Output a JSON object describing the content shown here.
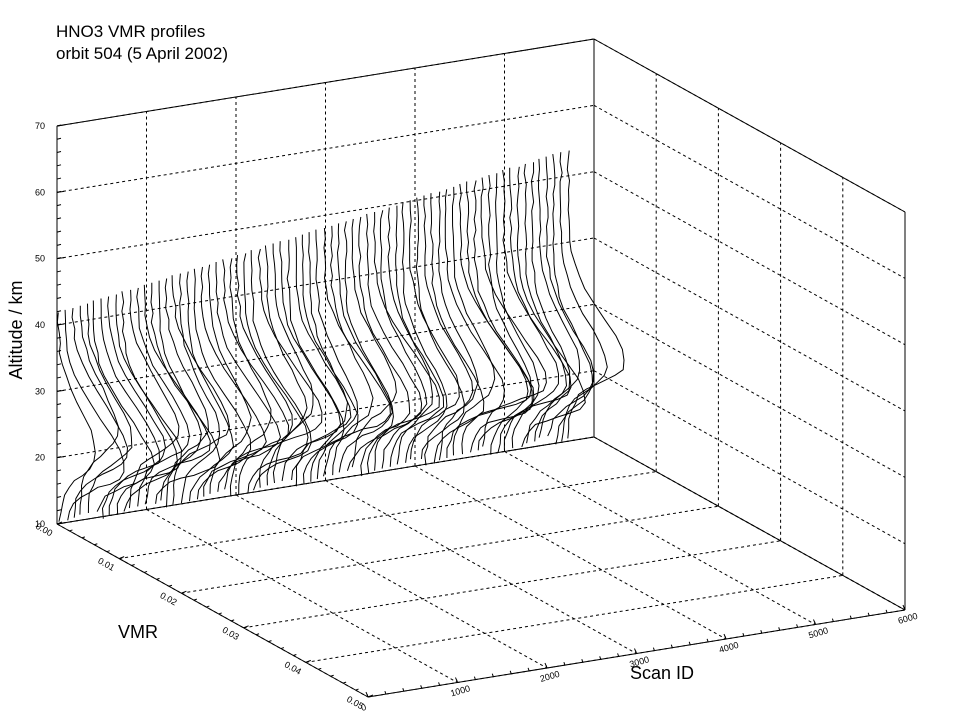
{
  "chart_data": {
    "type": "line",
    "title_lines": [
      "HNO3 VMR profiles",
      "orbit 504 (5 April 2002)"
    ],
    "zlabel": "Altitude / km",
    "xlabel": "VMR",
    "ylabel": "Scan ID",
    "vmr_ticks": [
      "0.00",
      "0.01",
      "0.02",
      "0.03",
      "0.04",
      "0.05"
    ],
    "scan_ticks": [
      "0",
      "1000",
      "2000",
      "3000",
      "4000",
      "5000",
      "6000"
    ],
    "alt_ticks": [
      "10",
      "20",
      "30",
      "40",
      "50",
      "60",
      "70"
    ],
    "vmr_range": [
      0,
      0.05
    ],
    "scan_range": [
      0,
      6000
    ],
    "alt_range": [
      10,
      70
    ],
    "grid": true,
    "grid_style": "dotted",
    "profiles": {
      "count": 72,
      "scan_id_range": [
        0,
        5700
      ],
      "top_altitude_km": [
        42,
        54
      ],
      "bottom_altitude_km": 10,
      "vmr_range": [
        0.0,
        0.012
      ]
    }
  }
}
